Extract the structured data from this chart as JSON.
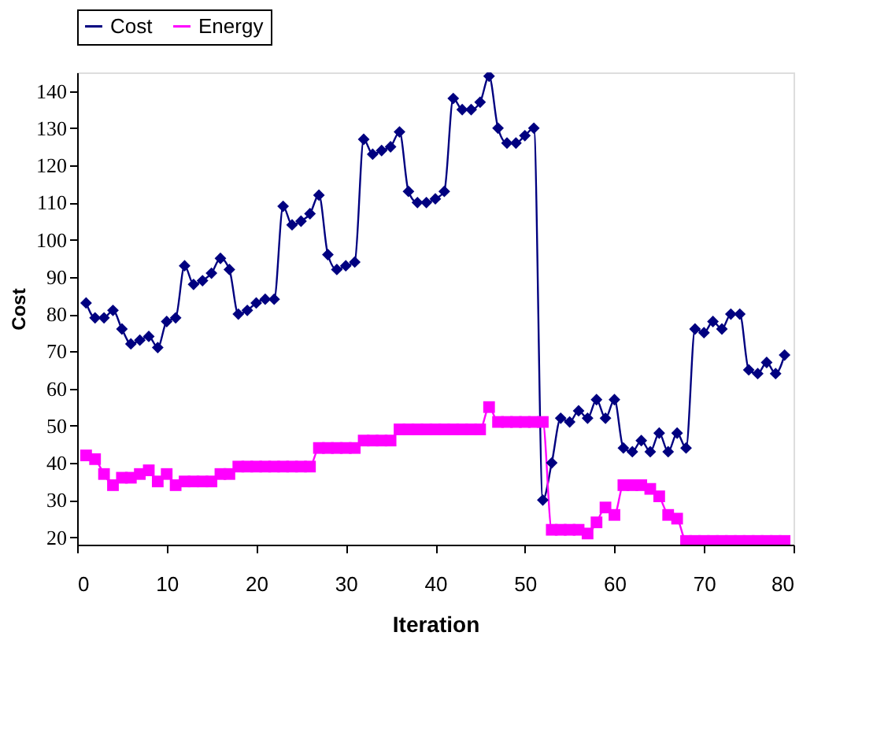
{
  "chart_data": {
    "type": "line",
    "xlabel": "Iteration",
    "ylabel": "Cost",
    "xlim": [
      0,
      80
    ],
    "xticks": [
      0,
      10,
      20,
      30,
      40,
      50,
      60,
      70,
      80
    ],
    "ylim": [
      18,
      145
    ],
    "yticks": [
      20,
      30,
      40,
      50,
      60,
      70,
      80,
      90,
      100,
      110,
      120,
      130,
      140
    ],
    "grid": false,
    "legend": "top",
    "x": [
      1,
      2,
      3,
      4,
      5,
      6,
      7,
      8,
      9,
      10,
      11,
      12,
      13,
      14,
      15,
      16,
      17,
      18,
      19,
      20,
      21,
      22,
      23,
      24,
      25,
      26,
      27,
      28,
      29,
      30,
      31,
      32,
      33,
      34,
      35,
      36,
      37,
      38,
      39,
      40,
      41,
      42,
      43,
      44,
      45,
      46,
      47,
      48,
      49,
      50,
      51,
      52,
      53,
      54,
      55,
      56,
      57,
      58,
      59,
      60,
      61,
      62,
      63,
      64,
      65,
      66,
      67,
      68,
      69,
      70,
      71,
      72,
      73,
      74,
      75,
      76,
      77,
      78,
      79
    ],
    "series": [
      {
        "name": "Cost",
        "color": "#000080",
        "marker": "diamond",
        "values": [
          83,
          79,
          79,
          81,
          76,
          72,
          73,
          74,
          71,
          78,
          79,
          93,
          88,
          89,
          91,
          95,
          92,
          80,
          81,
          83,
          84,
          84,
          109,
          104,
          105,
          107,
          112,
          96,
          92,
          93,
          94,
          127,
          123,
          124,
          125,
          129,
          113,
          110,
          110,
          111,
          113,
          138,
          135,
          135,
          137,
          144,
          130,
          126,
          126,
          128,
          130,
          30,
          40,
          52,
          51,
          54,
          52,
          57,
          52,
          57,
          44,
          43,
          46,
          43,
          48,
          43,
          48,
          44,
          76,
          75,
          78,
          76,
          80,
          80,
          65,
          64,
          67,
          64,
          69
        ]
      },
      {
        "name": "Energy",
        "color": "#ff00ff",
        "marker": "square",
        "values": [
          42,
          41,
          37,
          34,
          36,
          36,
          37,
          38,
          35,
          37,
          34,
          35,
          35,
          35,
          35,
          37,
          37,
          39,
          39,
          39,
          39,
          39,
          39,
          39,
          39,
          39,
          44,
          44,
          44,
          44,
          44,
          46,
          46,
          46,
          46,
          49,
          49,
          49,
          49,
          49,
          49,
          49,
          49,
          49,
          49,
          55,
          51,
          51,
          51,
          51,
          51,
          51,
          22,
          22,
          22,
          22,
          21,
          24,
          28,
          26,
          34,
          34,
          34,
          33,
          31,
          26,
          25,
          19,
          19,
          19,
          19,
          19,
          19,
          19,
          19,
          19,
          19,
          19,
          19
        ]
      }
    ]
  }
}
